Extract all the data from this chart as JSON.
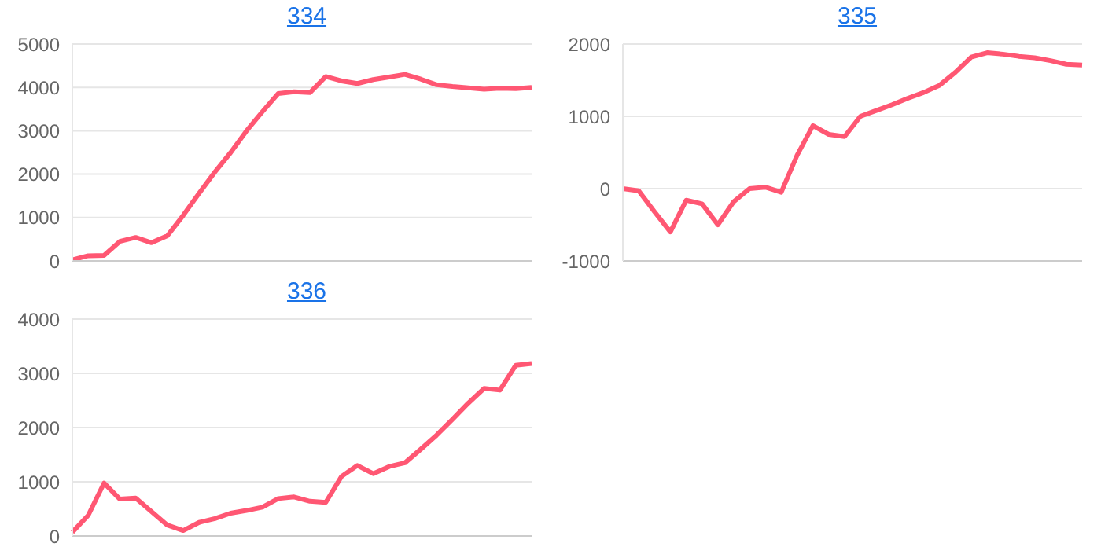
{
  "chart_data": [
    {
      "type": "line",
      "title": "334",
      "categories": [
        null,
        null,
        null,
        null,
        null,
        null,
        null,
        null,
        null,
        null,
        null,
        null,
        null,
        null,
        null,
        null,
        null,
        null,
        null,
        null,
        null,
        null,
        null,
        null,
        null,
        null,
        null,
        null,
        null,
        null
      ],
      "series": [
        {
          "color": "#ff5773",
          "values": [
            25,
            120,
            125,
            450,
            540,
            420,
            580,
            1050,
            1560,
            2050,
            2500,
            3000,
            3440,
            3860,
            3900,
            3880,
            4250,
            4150,
            4090,
            4180,
            4240,
            4300,
            4190,
            4060,
            4020,
            3990,
            3960,
            3980,
            3970,
            4000
          ]
        }
      ],
      "ylim": [
        0,
        5000
      ],
      "yticks": [
        0,
        1000,
        2000,
        3000,
        4000,
        5000
      ],
      "grid": "y",
      "legend": false,
      "marker": "none",
      "line_style": "solid"
    },
    {
      "type": "line",
      "title": "335",
      "categories": [
        null,
        null,
        null,
        null,
        null,
        null,
        null,
        null,
        null,
        null,
        null,
        null,
        null,
        null,
        null,
        null,
        null,
        null,
        null,
        null,
        null,
        null,
        null,
        null,
        null,
        null,
        null,
        null,
        null,
        null
      ],
      "series": [
        {
          "color": "#ff5773",
          "values": [
            0,
            -30,
            -320,
            -600,
            -160,
            -210,
            -500,
            -180,
            0,
            20,
            -50,
            460,
            870,
            750,
            720,
            1000,
            1080,
            1160,
            1250,
            1330,
            1430,
            1610,
            1820,
            1880,
            1860,
            1830,
            1810,
            1770,
            1720,
            1710
          ]
        }
      ],
      "ylim": [
        -1000,
        2000
      ],
      "yticks": [
        -1000,
        0,
        1000,
        2000
      ],
      "grid": "y",
      "legend": false,
      "marker": "none",
      "line_style": "solid"
    },
    {
      "type": "line",
      "title": "336",
      "categories": [
        null,
        null,
        null,
        null,
        null,
        null,
        null,
        null,
        null,
        null,
        null,
        null,
        null,
        null,
        null,
        null,
        null,
        null,
        null,
        null,
        null,
        null,
        null,
        null,
        null,
        null,
        null,
        null,
        null,
        null
      ],
      "series": [
        {
          "color": "#ff5773",
          "values": [
            70,
            380,
            975,
            680,
            700,
            450,
            200,
            100,
            250,
            320,
            420,
            470,
            530,
            690,
            720,
            640,
            620,
            1100,
            1300,
            1150,
            1280,
            1350,
            1600,
            1860,
            2150,
            2450,
            2720,
            2690,
            3150,
            3180
          ]
        }
      ],
      "ylim": [
        0,
        4000
      ],
      "yticks": [
        0,
        1000,
        2000,
        3000,
        4000
      ],
      "grid": "y",
      "legend": false,
      "marker": "none",
      "line_style": "solid"
    }
  ]
}
